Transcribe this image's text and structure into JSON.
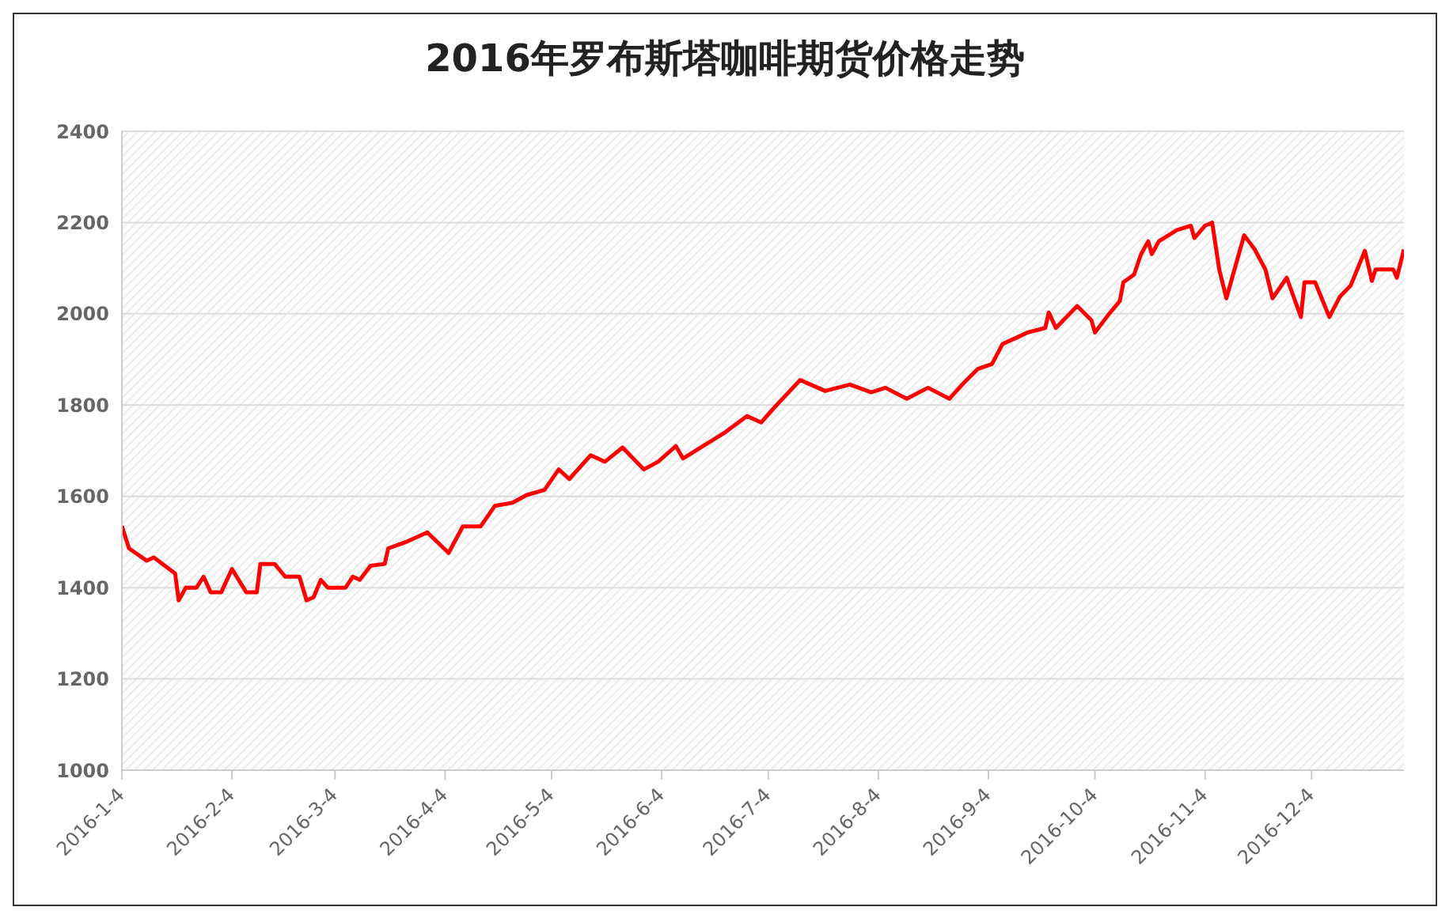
{
  "chart_data": {
    "type": "line",
    "title": "2016年罗布斯塔咖啡期货价格走势",
    "x": [
      "2016-01-04",
      "2016-01-06",
      "2016-01-11",
      "2016-01-13",
      "2016-01-19",
      "2016-01-20",
      "2016-01-22",
      "2016-01-25",
      "2016-01-27",
      "2016-01-29",
      "2016-02-01",
      "2016-02-04",
      "2016-02-08",
      "2016-02-11",
      "2016-02-12",
      "2016-02-16",
      "2016-02-19",
      "2016-02-23",
      "2016-02-25",
      "2016-02-27",
      "2016-02-29",
      "2016-03-02",
      "2016-03-07",
      "2016-03-09",
      "2016-03-11",
      "2016-03-14",
      "2016-03-18",
      "2016-03-19",
      "2016-03-24",
      "2016-03-30",
      "2016-04-05",
      "2016-04-09",
      "2016-04-14",
      "2016-04-18",
      "2016-04-23",
      "2016-04-27",
      "2016-05-02",
      "2016-05-06",
      "2016-05-09",
      "2016-05-15",
      "2016-05-19",
      "2016-05-24",
      "2016-05-30",
      "2016-06-03",
      "2016-06-08",
      "2016-06-10",
      "2016-06-15",
      "2016-06-22",
      "2016-06-28",
      "2016-07-02",
      "2016-07-06",
      "2016-07-13",
      "2016-07-20",
      "2016-07-27",
      "2016-08-02",
      "2016-08-06",
      "2016-08-12",
      "2016-08-18",
      "2016-08-24",
      "2016-08-28",
      "2016-09-01",
      "2016-09-05",
      "2016-09-08",
      "2016-09-12",
      "2016-09-15",
      "2016-09-20",
      "2016-09-21",
      "2016-09-23",
      "2016-09-29",
      "2016-10-03",
      "2016-10-04",
      "2016-10-08",
      "2016-10-11",
      "2016-10-12",
      "2016-10-15",
      "2016-10-17",
      "2016-10-19",
      "2016-10-20",
      "2016-10-22",
      "2016-10-27",
      "2016-10-31",
      "2016-11-01",
      "2016-11-04",
      "2016-11-06",
      "2016-11-08",
      "2016-11-10",
      "2016-11-15",
      "2016-11-18",
      "2016-11-21",
      "2016-11-23",
      "2016-11-27",
      "2016-12-01",
      "2016-12-02",
      "2016-12-05",
      "2016-12-09",
      "2016-12-12",
      "2016-12-15",
      "2016-12-19",
      "2016-12-21",
      "2016-12-22",
      "2016-12-27",
      "2016-12-28",
      "2016-12-30"
    ],
    "series": [
      {
        "color": "#ff0000",
        "values": [
          1535,
          1486,
          1459,
          1466,
          1431,
          1372,
          1400,
          1400,
          1424,
          1390,
          1390,
          1441,
          1390,
          1390,
          1452,
          1452,
          1424,
          1424,
          1372,
          1379,
          1417,
          1400,
          1400,
          1424,
          1417,
          1448,
          1452,
          1486,
          1500,
          1521,
          1476,
          1534,
          1534,
          1579,
          1586,
          1603,
          1614,
          1659,
          1638,
          1690,
          1676,
          1707,
          1659,
          1676,
          1710,
          1683,
          1707,
          1741,
          1776,
          1762,
          1797,
          1855,
          1831,
          1845,
          1828,
          1838,
          1814,
          1838,
          1814,
          1848,
          1879,
          1890,
          1934,
          1948,
          1959,
          1969,
          2003,
          1969,
          2017,
          1986,
          1959,
          2000,
          2028,
          2069,
          2086,
          2131,
          2159,
          2131,
          2159,
          2183,
          2193,
          2166,
          2193,
          2200,
          2097,
          2034,
          2172,
          2141,
          2097,
          2034,
          2079,
          1993,
          2069,
          2069,
          1993,
          2038,
          2062,
          2138,
          2072,
          2097,
          2097,
          2079,
          2141
        ]
      }
    ],
    "xlim": [
      "2016-01-04",
      "2016-12-30"
    ],
    "xticks": [
      {
        "value": "2016-01-04",
        "label": "2016-1-4"
      },
      {
        "value": "2016-02-04",
        "label": "2016-2-4"
      },
      {
        "value": "2016-03-04",
        "label": "2016-3-4"
      },
      {
        "value": "2016-04-04",
        "label": "2016-4-4"
      },
      {
        "value": "2016-05-04",
        "label": "2016-5-4"
      },
      {
        "value": "2016-06-04",
        "label": "2016-6-4"
      },
      {
        "value": "2016-07-04",
        "label": "2016-7-4"
      },
      {
        "value": "2016-08-04",
        "label": "2016-8-4"
      },
      {
        "value": "2016-09-04",
        "label": "2016-9-4"
      },
      {
        "value": "2016-10-04",
        "label": "2016-10-4"
      },
      {
        "value": "2016-11-04",
        "label": "2016-11-4"
      },
      {
        "value": "2016-12-04",
        "label": "2016-12-4"
      }
    ],
    "ylim": [
      1000,
      2400
    ],
    "yticks": [
      1000,
      1200,
      1400,
      1600,
      1800,
      2000,
      2200,
      2400
    ],
    "grid": "y",
    "legend": false,
    "marker": "none",
    "line_style": "solid"
  }
}
